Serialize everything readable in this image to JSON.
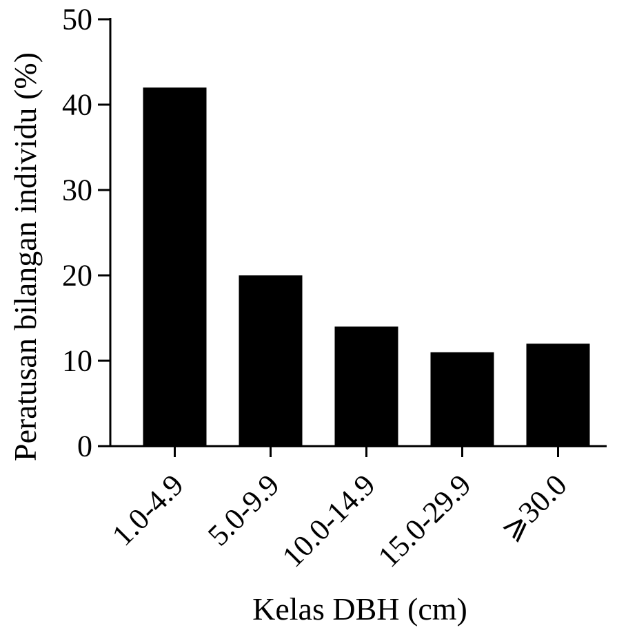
{
  "chart_data": {
    "type": "bar",
    "title": "",
    "xlabel": "Kelas DBH (cm)",
    "ylabel": "Peratusan bilangan individu (%)",
    "categories": [
      "1.0-4.9",
      "5.0-9.9",
      "10.0-14.9",
      "15.0-29.9",
      "⩾30.0"
    ],
    "values": [
      42,
      20,
      14,
      11,
      12
    ],
    "ylim": [
      0,
      50
    ],
    "yticks": [
      0,
      10,
      20,
      30,
      40,
      50
    ],
    "ytick_labels": [
      "0",
      "10",
      "20",
      "30",
      "40",
      "50"
    ],
    "grid": false,
    "legend": "none",
    "colors": {
      "bar": "#000000",
      "axis": "#000000",
      "background": "#ffffff"
    }
  }
}
